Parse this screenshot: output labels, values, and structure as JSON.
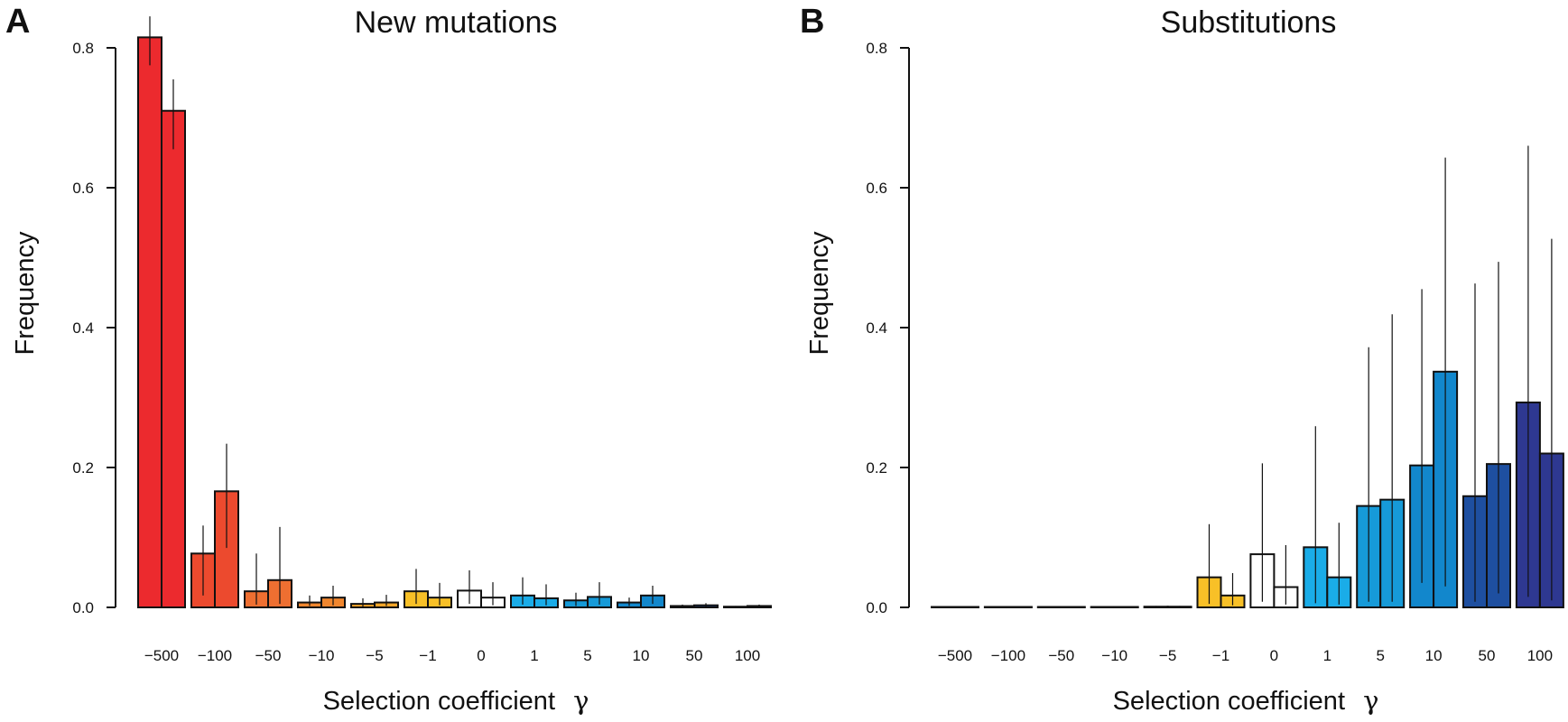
{
  "chart_data": [
    {
      "panel": "A",
      "type": "bar",
      "title": "New mutations",
      "xlabel": "Selection coefficient",
      "xlabel_symbol": "γ",
      "ylabel": "Frequency",
      "ylim": [
        0,
        0.8
      ],
      "yticks": [
        0.0,
        0.2,
        0.4,
        0.6,
        0.8
      ],
      "ytick_labels": [
        "0.0",
        "0.2",
        "0.4",
        "0.6",
        "0.8"
      ],
      "grid": false,
      "categories": [
        "−500",
        "−100",
        "−50",
        "−10",
        "−5",
        "−1",
        "0",
        "1",
        "5",
        "10",
        "50",
        "100"
      ],
      "colors": [
        "#ec2a2e",
        "#ec4a2e",
        "#ee6f31",
        "#f0862e",
        "#f4a62a",
        "#f8c027",
        "#ffffff",
        "#1aace8",
        "#169ad8",
        "#1287cc",
        "#1e4fa0",
        "#2e3891"
      ],
      "series": [
        {
          "values": [
            0.815,
            0.077,
            0.023,
            0.007,
            0.005,
            0.023,
            0.024,
            0.017,
            0.01,
            0.007,
            0.002,
            0.001
          ],
          "err_low": [
            0.775,
            0.017,
            0.004,
            0.002,
            0.001,
            0.005,
            0.005,
            0.004,
            0.002,
            0.002,
            0.001,
            0.0
          ],
          "err_high": [
            0.845,
            0.117,
            0.077,
            0.017,
            0.013,
            0.055,
            0.053,
            0.043,
            0.021,
            0.014,
            0.004,
            0.002
          ]
        },
        {
          "values": [
            0.71,
            0.166,
            0.039,
            0.014,
            0.007,
            0.014,
            0.014,
            0.013,
            0.015,
            0.017,
            0.003,
            0.002
          ],
          "err_low": [
            0.655,
            0.085,
            0.005,
            0.003,
            0.002,
            0.003,
            0.003,
            0.003,
            0.004,
            0.005,
            0.001,
            0.001
          ],
          "err_high": [
            0.755,
            0.234,
            0.115,
            0.031,
            0.018,
            0.035,
            0.036,
            0.033,
            0.036,
            0.031,
            0.006,
            0.004
          ]
        }
      ]
    },
    {
      "panel": "B",
      "type": "bar",
      "title": "Substitutions",
      "xlabel": "Selection coefficient",
      "xlabel_symbol": "γ",
      "ylabel": "Frequency",
      "ylim": [
        0,
        0.8
      ],
      "yticks": [
        0.0,
        0.2,
        0.4,
        0.6,
        0.8
      ],
      "ytick_labels": [
        "0.0",
        "0.2",
        "0.4",
        "0.6",
        "0.8"
      ],
      "grid": false,
      "categories": [
        "−500",
        "−100",
        "−50",
        "−10",
        "−5",
        "−1",
        "0",
        "1",
        "5",
        "10",
        "50",
        "100"
      ],
      "colors": [
        "#ec2a2e",
        "#ec4a2e",
        "#ee6f31",
        "#f0862e",
        "#f4a62a",
        "#f8c027",
        "#ffffff",
        "#1aace8",
        "#169ad8",
        "#1287cc",
        "#1e4fa0",
        "#2e3891"
      ],
      "series": [
        {
          "values": [
            0.0,
            0.0,
            0.0,
            0.0,
            0.001,
            0.043,
            0.076,
            0.086,
            0.145,
            0.203,
            0.159,
            0.293
          ],
          "err_low": [
            0.0,
            0.0,
            0.0,
            0.0,
            0.0,
            0.005,
            0.008,
            0.006,
            0.008,
            0.035,
            0.008,
            0.015
          ],
          "err_high": [
            0.0,
            0.0,
            0.0,
            0.0,
            0.002,
            0.119,
            0.206,
            0.259,
            0.372,
            0.455,
            0.463,
            0.66
          ]
        },
        {
          "values": [
            0.0,
            0.0,
            0.0,
            0.0,
            0.001,
            0.017,
            0.029,
            0.043,
            0.154,
            0.337,
            0.205,
            0.22
          ],
          "err_low": [
            0.0,
            0.0,
            0.0,
            0.0,
            0.0,
            0.003,
            0.004,
            0.004,
            0.008,
            0.03,
            0.02,
            0.01
          ],
          "err_high": [
            0.0,
            0.0,
            0.0,
            0.0,
            0.002,
            0.049,
            0.089,
            0.121,
            0.419,
            0.643,
            0.494,
            0.527
          ]
        }
      ]
    }
  ]
}
